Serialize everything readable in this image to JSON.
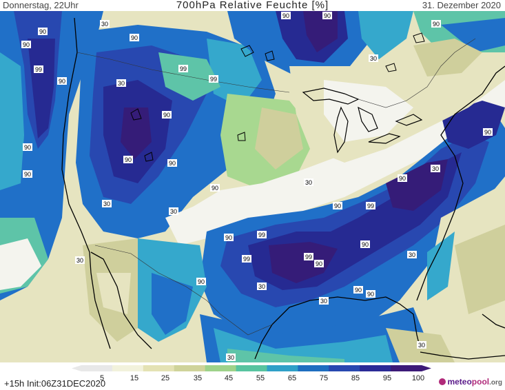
{
  "header": {
    "left": "Donnerstag, 22Uhr",
    "title": "700hPa Relative Feuchte [%]",
    "right": "31. Dezember 2020"
  },
  "footer": {
    "left": "+15h Init:06Z31DEC2020",
    "logo_part1": "meteo",
    "logo_part2": "pool",
    "logo_part3": ".org"
  },
  "legend": {
    "ticks": [
      "5",
      "15",
      "25",
      "35",
      "45",
      "55",
      "65",
      "75",
      "85",
      "95",
      "100"
    ],
    "colors": [
      "#e8e8e8",
      "#f2f2dc",
      "#e4e2b4",
      "#cfd39a",
      "#9ed28a",
      "#58c4a0",
      "#2fa0c8",
      "#1e6ec0",
      "#2848b0",
      "#2a2a96",
      "#3c1a78"
    ]
  },
  "map": {
    "contour_labels": [
      "90",
      "30",
      "90",
      "90",
      "99",
      "90",
      "30",
      "99",
      "99",
      "90",
      "90",
      "30",
      "90",
      "90",
      "90",
      "90",
      "90",
      "30",
      "30",
      "90",
      "30",
      "90",
      "99",
      "90",
      "30",
      "90",
      "99",
      "90",
      "99",
      "99",
      "90",
      "90",
      "30",
      "90",
      "30",
      "90",
      "90",
      "30",
      "30",
      "30",
      "90",
      "30"
    ],
    "colors": {
      "dry": "#f4f4ee",
      "pale": "#e6e4c0",
      "tan": "#cfcf9c",
      "green": "#a8d890",
      "teal": "#5ec4a8",
      "cyan": "#35a8cc",
      "blue": "#2070c8",
      "darkblue": "#2848b0",
      "navy": "#262a92",
      "purple": "#351c78"
    }
  }
}
